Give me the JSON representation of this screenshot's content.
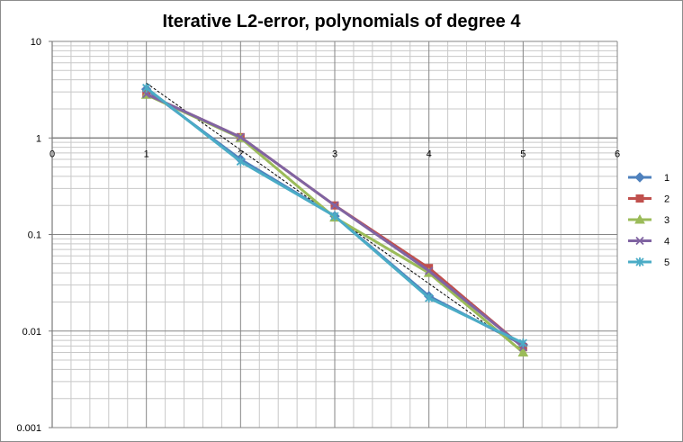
{
  "chart_data": {
    "type": "line",
    "title": "Iterative L2-error, polynomials of degree 4",
    "xlabel": "",
    "ylabel": "",
    "xlim": [
      0,
      6
    ],
    "ylim": [
      0.001,
      10
    ],
    "yscale": "log",
    "grid": true,
    "legend_position": "right",
    "x_ticks": [
      "0",
      "1",
      "2",
      "3",
      "4",
      "5",
      "6"
    ],
    "y_ticks": [
      "0.001",
      "0.01",
      "0.1",
      "1",
      "10"
    ],
    "x": [
      1,
      2,
      3,
      4,
      5
    ],
    "series": [
      {
        "name": "1",
        "color": "#4f81bd",
        "marker": "diamond",
        "values": [
          3.2,
          0.6,
          0.155,
          0.023,
          0.0072
        ]
      },
      {
        "name": "2",
        "color": "#c0504d",
        "marker": "square",
        "values": [
          2.85,
          1.02,
          0.2,
          0.045,
          0.0068
        ]
      },
      {
        "name": "3",
        "color": "#9bbb59",
        "marker": "triangle",
        "values": [
          2.8,
          1.0,
          0.15,
          0.04,
          0.006
        ]
      },
      {
        "name": "4",
        "color": "#8064a2",
        "marker": "x",
        "values": [
          2.85,
          1.02,
          0.2,
          0.042,
          0.0068
        ]
      },
      {
        "name": "5",
        "color": "#4bacc6",
        "marker": "star",
        "values": [
          3.3,
          0.57,
          0.155,
          0.022,
          0.0075
        ]
      }
    ],
    "trendline": {
      "color": "#000000",
      "x": [
        1,
        5
      ],
      "values": [
        3.7,
        0.0063
      ]
    }
  }
}
